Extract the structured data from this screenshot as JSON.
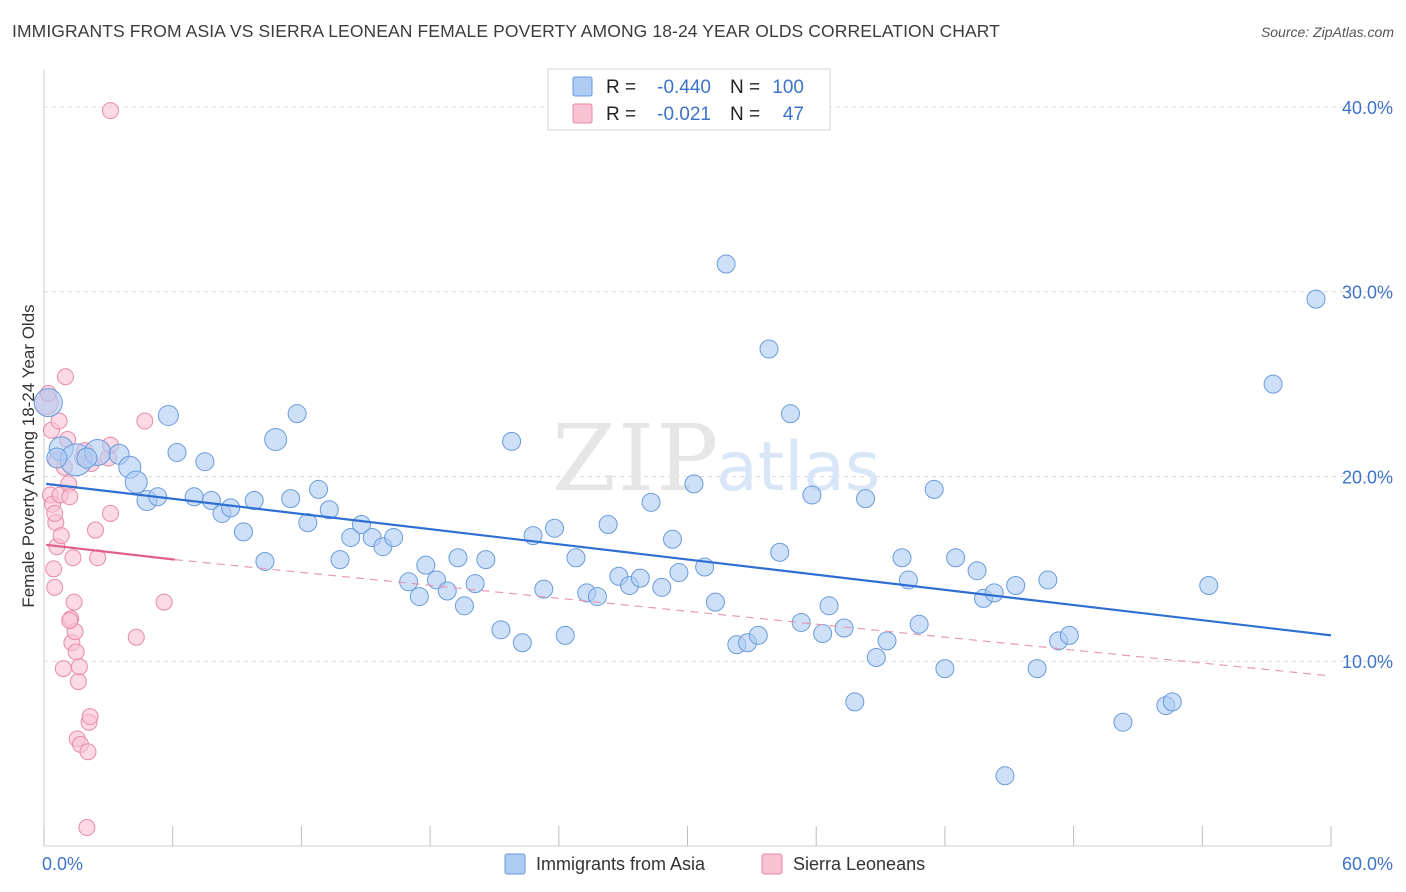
{
  "title": "IMMIGRANTS FROM ASIA VS SIERRA LEONEAN FEMALE POVERTY AMONG 18-24 YEAR OLDS CORRELATION CHART",
  "source": "Source: ZipAtlas.com",
  "watermark": {
    "zip": "ZIP",
    "atlas": "atlas"
  },
  "legend": {
    "rows": [
      {
        "r_label": "R =",
        "r_value": "-0.440",
        "n_label": "N =",
        "n_value": "100",
        "fill": "#aecbf4",
        "stroke": "#6a9bdc"
      },
      {
        "r_label": "R =",
        "r_value": "-0.021",
        "n_label": "N =",
        "n_value": "47",
        "fill": "#f9c2d3",
        "stroke": "#e88aa9"
      }
    ]
  },
  "bottom_legend": [
    {
      "label": "Immigrants from Asia",
      "fill": "#aecbf4",
      "stroke": "#6a9bdc"
    },
    {
      "label": "Sierra Leoneans",
      "fill": "#f9c2d3",
      "stroke": "#e88aa9"
    }
  ],
  "chart_data": {
    "type": "scatter",
    "title": "IMMIGRANTS FROM ASIA VS SIERRA LEONEAN FEMALE POVERTY AMONG 18-24 YEAR OLDS CORRELATION CHART",
    "xlabel": "",
    "ylabel": "Female Poverty Among 18-24 Year Olds",
    "xlim": [
      0,
      60
    ],
    "ylim": [
      0,
      42
    ],
    "x_tick_labels": [
      {
        "value": 0,
        "label": "0.0%"
      },
      {
        "value": 60,
        "label": "60.0%"
      }
    ],
    "y_tick_labels": [
      {
        "value": 10,
        "label": "10.0%"
      },
      {
        "value": 20,
        "label": "20.0%"
      },
      {
        "value": 30,
        "label": "30.0%"
      },
      {
        "value": 40,
        "label": "40.0%"
      }
    ],
    "y_gridlines": [
      10,
      20,
      30,
      40
    ],
    "x_minor_ticks": [
      0,
      6,
      12,
      18,
      24,
      30,
      36,
      42,
      48,
      54,
      60
    ],
    "series": [
      {
        "name": "Immigrants from Asia",
        "color": "#aecbf4",
        "stroke": "#6a9bdc",
        "trend": {
          "x0": 0.1,
          "y0": 19.6,
          "x1": 60,
          "y1": 11.4,
          "color": "#2f6fd1"
        },
        "points": [
          [
            0.2,
            24.0,
            14
          ],
          [
            0.8,
            21.5,
            12
          ],
          [
            1.5,
            20.9,
            16
          ],
          [
            2.5,
            21.3,
            13
          ],
          [
            3.5,
            21.2,
            10
          ],
          [
            4.0,
            20.5,
            11
          ],
          [
            4.3,
            19.7,
            11
          ],
          [
            4.8,
            18.7,
            10
          ],
          [
            5.3,
            18.9,
            9
          ],
          [
            5.8,
            23.3,
            10
          ],
          [
            6.2,
            21.3,
            9
          ],
          [
            7.0,
            18.9,
            9
          ],
          [
            7.5,
            20.8,
            9
          ],
          [
            7.8,
            18.7,
            9
          ],
          [
            8.3,
            18.0,
            9
          ],
          [
            8.7,
            18.3,
            9
          ],
          [
            9.3,
            17.0,
            9
          ],
          [
            9.8,
            18.7,
            9
          ],
          [
            10.3,
            15.4,
            9
          ],
          [
            10.8,
            22.0,
            11
          ],
          [
            11.5,
            18.8,
            9
          ],
          [
            11.8,
            23.4,
            9
          ],
          [
            12.3,
            17.5,
            9
          ],
          [
            12.8,
            19.3,
            9
          ],
          [
            13.3,
            18.2,
            9
          ],
          [
            13.8,
            15.5,
            9
          ],
          [
            14.3,
            16.7,
            9
          ],
          [
            14.8,
            17.4,
            9
          ],
          [
            15.3,
            16.7,
            9
          ],
          [
            15.8,
            16.2,
            9
          ],
          [
            16.3,
            16.7,
            9
          ],
          [
            17.0,
            14.3,
            9
          ],
          [
            17.5,
            13.5,
            9
          ],
          [
            17.8,
            15.2,
            9
          ],
          [
            18.3,
            14.4,
            9
          ],
          [
            18.8,
            13.8,
            9
          ],
          [
            19.3,
            15.6,
            9
          ],
          [
            19.6,
            13.0,
            9
          ],
          [
            20.1,
            14.2,
            9
          ],
          [
            20.6,
            15.5,
            9
          ],
          [
            21.3,
            11.7,
            9
          ],
          [
            21.8,
            21.9,
            9
          ],
          [
            22.3,
            11.0,
            9
          ],
          [
            22.8,
            16.8,
            9
          ],
          [
            23.3,
            13.9,
            9
          ],
          [
            23.8,
            17.2,
            9
          ],
          [
            24.3,
            11.4,
            9
          ],
          [
            24.8,
            15.6,
            9
          ],
          [
            25.3,
            13.7,
            9
          ],
          [
            25.8,
            13.5,
            9
          ],
          [
            26.3,
            17.4,
            9
          ],
          [
            26.8,
            14.6,
            9
          ],
          [
            27.3,
            14.1,
            9
          ],
          [
            27.8,
            14.5,
            9
          ],
          [
            28.3,
            18.6,
            9
          ],
          [
            28.8,
            14.0,
            9
          ],
          [
            29.3,
            16.6,
            9
          ],
          [
            29.6,
            14.8,
            9
          ],
          [
            30.3,
            19.6,
            9
          ],
          [
            30.8,
            15.1,
            9
          ],
          [
            31.3,
            13.2,
            9
          ],
          [
            31.8,
            31.5,
            9
          ],
          [
            32.3,
            10.9,
            9
          ],
          [
            32.8,
            11.0,
            9
          ],
          [
            33.3,
            11.4,
            9
          ],
          [
            33.8,
            26.9,
            9
          ],
          [
            34.3,
            15.9,
            9
          ],
          [
            34.8,
            23.4,
            9
          ],
          [
            35.3,
            12.1,
            9
          ],
          [
            35.8,
            19.0,
            9
          ],
          [
            36.3,
            11.5,
            9
          ],
          [
            36.6,
            13.0,
            9
          ],
          [
            37.3,
            11.8,
            9
          ],
          [
            37.8,
            7.8,
            9
          ],
          [
            38.3,
            18.8,
            9
          ],
          [
            38.8,
            10.2,
            9
          ],
          [
            39.3,
            11.1,
            9
          ],
          [
            40.0,
            15.6,
            9
          ],
          [
            40.3,
            14.4,
            9
          ],
          [
            40.8,
            12.0,
            9
          ],
          [
            41.5,
            19.3,
            9
          ],
          [
            42.0,
            9.6,
            9
          ],
          [
            42.5,
            15.6,
            9
          ],
          [
            43.5,
            14.9,
            9
          ],
          [
            43.8,
            13.4,
            9
          ],
          [
            44.3,
            13.7,
            9
          ],
          [
            44.8,
            3.8,
            9
          ],
          [
            45.3,
            14.1,
            9
          ],
          [
            46.3,
            9.6,
            9
          ],
          [
            46.8,
            14.4,
            9
          ],
          [
            47.3,
            11.1,
            9
          ],
          [
            47.8,
            11.4,
            9
          ],
          [
            50.3,
            6.7,
            9
          ],
          [
            52.3,
            7.6,
            9
          ],
          [
            52.6,
            7.8,
            9
          ],
          [
            54.3,
            14.1,
            9
          ],
          [
            57.3,
            25.0,
            9
          ],
          [
            59.3,
            29.6,
            9
          ],
          [
            0.6,
            21.0,
            10
          ],
          [
            2.0,
            21.0,
            10
          ]
        ]
      },
      {
        "name": "Sierra Leoneans",
        "color": "#f9c2d3",
        "stroke": "#e88aa9",
        "trend": {
          "x0": 0.1,
          "y0": 16.3,
          "x1": 6.1,
          "y1": 15.5,
          "color": "#e0608b"
        },
        "trend_dashed": {
          "x0": 6.1,
          "y0": 15.5,
          "x1": 60,
          "y1": 9.2,
          "color": "#e79ab4"
        },
        "points": [
          [
            0.1,
            24.0,
            12
          ],
          [
            0.2,
            24.5,
            8
          ],
          [
            0.3,
            19.0,
            8
          ],
          [
            0.35,
            22.5,
            8
          ],
          [
            0.4,
            18.5,
            8
          ],
          [
            0.45,
            15.0,
            8
          ],
          [
            0.5,
            14.0,
            8
          ],
          [
            0.55,
            17.5,
            8
          ],
          [
            0.6,
            16.2,
            8
          ],
          [
            0.7,
            23.0,
            8
          ],
          [
            0.75,
            19.0,
            8
          ],
          [
            0.8,
            16.8,
            8
          ],
          [
            0.9,
            9.6,
            8
          ],
          [
            0.95,
            20.5,
            8
          ],
          [
            1.0,
            25.4,
            8
          ],
          [
            1.1,
            22.0,
            8
          ],
          [
            1.15,
            19.6,
            8
          ],
          [
            1.2,
            18.9,
            8
          ],
          [
            1.25,
            12.3,
            8
          ],
          [
            1.3,
            11.0,
            8
          ],
          [
            1.35,
            15.6,
            8
          ],
          [
            1.4,
            13.2,
            8
          ],
          [
            1.45,
            11.6,
            8
          ],
          [
            1.5,
            10.5,
            8
          ],
          [
            1.55,
            5.8,
            8
          ],
          [
            1.6,
            8.9,
            8
          ],
          [
            1.65,
            9.7,
            8
          ],
          [
            1.7,
            5.5,
            8
          ],
          [
            1.8,
            21.0,
            8
          ],
          [
            1.9,
            21.4,
            8
          ],
          [
            2.0,
            1.0,
            8
          ],
          [
            2.05,
            5.1,
            8
          ],
          [
            2.1,
            6.7,
            8
          ],
          [
            2.15,
            7.0,
            8
          ],
          [
            2.2,
            20.7,
            8
          ],
          [
            2.4,
            17.1,
            8
          ],
          [
            2.5,
            15.6,
            8
          ],
          [
            3.0,
            21.0,
            8
          ],
          [
            3.1,
            18.0,
            8
          ],
          [
            3.1,
            21.7,
            8
          ],
          [
            3.1,
            39.8,
            8
          ],
          [
            4.3,
            11.3,
            8
          ],
          [
            4.7,
            23.0,
            8
          ],
          [
            5.6,
            13.2,
            8
          ],
          [
            0.5,
            18.0,
            8
          ],
          [
            0.6,
            20.9,
            8
          ],
          [
            1.2,
            12.2,
            8
          ]
        ]
      }
    ]
  }
}
